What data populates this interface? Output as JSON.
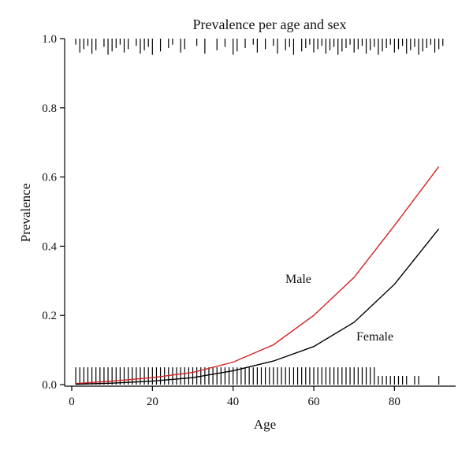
{
  "chart_data": {
    "type": "line",
    "title": "Prevalence per age and sex",
    "xlabel": "Age",
    "ylabel": "Prevalence",
    "xlim": [
      0,
      94
    ],
    "ylim": [
      0,
      1.0
    ],
    "x_ticks": [
      0,
      20,
      40,
      60,
      80
    ],
    "y_ticks": [
      0.0,
      0.2,
      0.4,
      0.6,
      0.8,
      1.0
    ],
    "x_tick_labels": [
      "0",
      "20",
      "40",
      "60",
      "80"
    ],
    "y_tick_labels": [
      "0.0",
      "0.2",
      "0.4",
      "0.6",
      "0.8",
      "1.0"
    ],
    "grid": false,
    "legend": "none",
    "series": [
      {
        "name": "Male",
        "color": "#d62020",
        "x": [
          1,
          10,
          20,
          30,
          40,
          50,
          60,
          70,
          80,
          91
        ],
        "y": [
          0.003,
          0.01,
          0.02,
          0.035,
          0.065,
          0.115,
          0.2,
          0.31,
          0.46,
          0.63
        ]
      },
      {
        "name": "Female",
        "color": "#000000",
        "x": [
          1,
          10,
          20,
          30,
          40,
          50,
          60,
          70,
          80,
          91
        ],
        "y": [
          0.001,
          0.004,
          0.01,
          0.02,
          0.04,
          0.068,
          0.11,
          0.18,
          0.29,
          0.45
        ]
      }
    ],
    "rug_top": {
      "y_level": 1.0,
      "x": [
        1,
        2,
        3,
        4,
        5,
        6,
        8,
        9,
        10,
        11,
        12,
        13,
        14,
        16,
        17,
        18,
        19,
        20,
        22,
        24,
        25,
        27,
        28,
        31,
        33,
        36,
        38,
        40,
        41,
        43,
        45,
        46,
        48,
        50,
        51,
        53,
        54,
        55,
        57,
        58,
        59,
        60,
        61,
        62,
        63,
        64,
        65,
        66,
        67,
        68,
        69,
        70,
        71,
        72,
        73,
        74,
        75,
        76,
        77,
        78,
        79,
        80,
        81,
        82,
        83,
        84,
        85,
        86,
        87,
        88,
        89,
        90,
        91,
        92
      ]
    },
    "rug_bottom": {
      "y_level": 0.0,
      "x": [
        1,
        2,
        3,
        4,
        5,
        6,
        7,
        8,
        9,
        10,
        11,
        12,
        13,
        14,
        15,
        16,
        17,
        18,
        19,
        20,
        21,
        22,
        23,
        24,
        25,
        26,
        27,
        28,
        29,
        30,
        31,
        32,
        33,
        34,
        35,
        36,
        37,
        38,
        39,
        40,
        41,
        42,
        43,
        44,
        45,
        46,
        47,
        48,
        49,
        50,
        51,
        52,
        53,
        54,
        55,
        56,
        57,
        58,
        59,
        60,
        61,
        62,
        63,
        64,
        65,
        66,
        67,
        68,
        69,
        70,
        71,
        72,
        73,
        74,
        75,
        76,
        77,
        78,
        79,
        80,
        81,
        82,
        83,
        85,
        86,
        91
      ]
    }
  }
}
